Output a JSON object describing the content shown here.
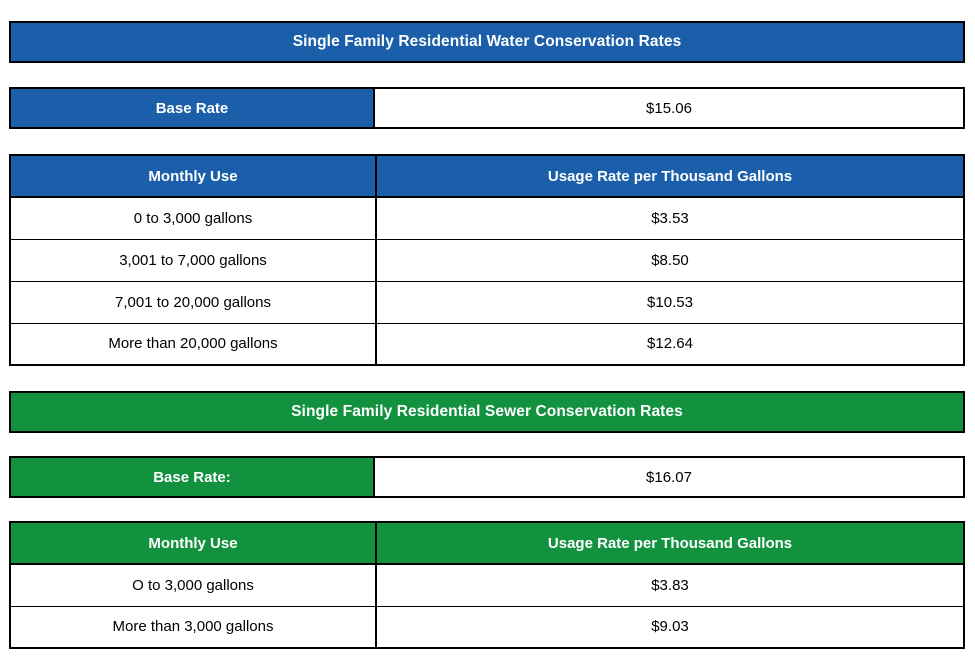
{
  "colors": {
    "water_accent": "#1B5FAA",
    "sewer_accent": "#12923F",
    "border": "#000000",
    "header_text": "#FFFFFF",
    "body_text": "#000000"
  },
  "water": {
    "title": "Single Family Residential Water Conservation Rates",
    "base_rate": {
      "label": "Base Rate",
      "value": "$15.06"
    },
    "usage_table": {
      "headers": [
        "Monthly Use",
        "Usage Rate per Thousand Gallons"
      ],
      "rows": [
        {
          "use": "0 to 3,000 gallons",
          "rate": "$3.53"
        },
        {
          "use": "3,001 to 7,000 gallons",
          "rate": "$8.50"
        },
        {
          "use": "7,001 to 20,000 gallons",
          "rate": "$10.53"
        },
        {
          "use": "More than 20,000 gallons",
          "rate": "$12.64"
        }
      ]
    }
  },
  "sewer": {
    "title": "Single Family Residential Sewer Conservation Rates",
    "base_rate": {
      "label": "Base Rate:",
      "value": "$16.07"
    },
    "usage_table": {
      "headers": [
        "Monthly Use",
        "Usage Rate per Thousand Gallons"
      ],
      "rows": [
        {
          "use": "O to 3,000 gallons",
          "rate": "$3.83"
        },
        {
          "use": "More than 3,000 gallons",
          "rate": "$9.03"
        }
      ]
    }
  }
}
